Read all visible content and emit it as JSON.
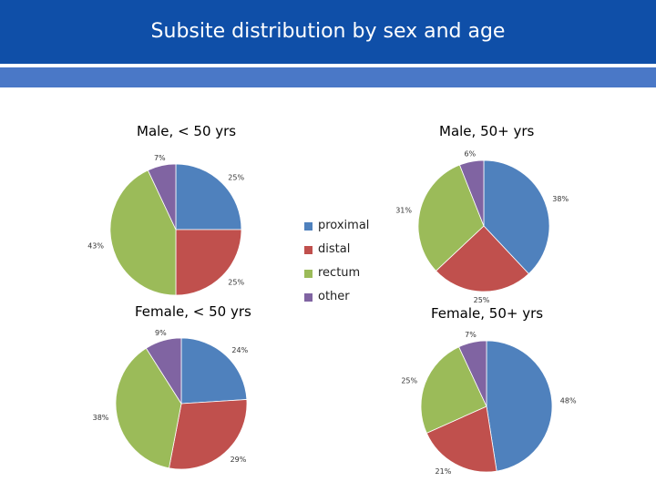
{
  "slide": {
    "title": "Subsite distribution by sex and age"
  },
  "colors": {
    "header": "#0f4fa8",
    "subbar": "#4a78c7",
    "proximal": "#4f81bd",
    "distal": "#c0504d",
    "rectum": "#9bbb59",
    "other": "#8064a2"
  },
  "legend": [
    {
      "label": "proximal"
    },
    {
      "label": "distal"
    },
    {
      "label": "rectum"
    },
    {
      "label": "other"
    }
  ],
  "chart_data": [
    {
      "type": "pie",
      "title": "Male, < 50 yrs",
      "categories": [
        "proximal",
        "distal",
        "rectum",
        "other"
      ],
      "values": [
        25,
        25,
        43,
        7
      ],
      "labels": [
        "25%",
        "25%",
        "43%",
        "7%"
      ]
    },
    {
      "type": "pie",
      "title": "Male, 50+ yrs",
      "categories": [
        "proximal",
        "distal",
        "rectum",
        "other"
      ],
      "values": [
        38,
        25,
        31,
        6
      ],
      "labels": [
        "38%",
        "25%",
        "31%",
        "6%"
      ]
    },
    {
      "type": "pie",
      "title": "Female, < 50 yrs",
      "categories": [
        "proximal",
        "distal",
        "rectum",
        "other"
      ],
      "values": [
        24,
        29,
        38,
        9
      ],
      "labels": [
        "24%",
        "29%",
        "38%",
        "9%"
      ]
    },
    {
      "type": "pie",
      "title": "Female, 50+ yrs",
      "categories": [
        "proximal",
        "distal",
        "rectum",
        "other"
      ],
      "values": [
        48,
        21,
        25,
        7
      ],
      "labels": [
        "48%",
        "21%",
        "25%",
        "7%"
      ]
    }
  ]
}
